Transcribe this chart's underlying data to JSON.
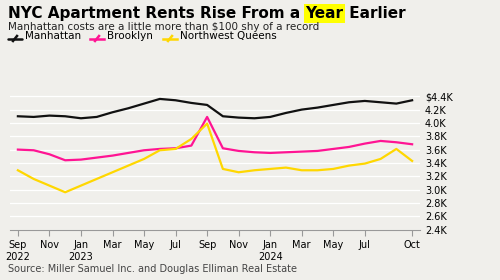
{
  "title_prefix": "NYC Apartment Rents Rise From a ",
  "title_highlight": "Year",
  "title_suffix": " Earlier",
  "subtitle": "Manhattan costs are a little more than $100 shy of a record",
  "source": "Source: Miller Samuel Inc. and Douglas Elliman Real Estate",
  "manhattan": [
    4100,
    4090,
    4110,
    4100,
    4070,
    4090,
    4160,
    4220,
    4290,
    4360,
    4340,
    4300,
    4270,
    4100,
    4080,
    4070,
    4090,
    4150,
    4200,
    4230,
    4270,
    4310,
    4330,
    4310,
    4290,
    4340
  ],
  "brooklyn": [
    3600,
    3590,
    3530,
    3440,
    3450,
    3480,
    3510,
    3550,
    3590,
    3610,
    3620,
    3660,
    4090,
    3620,
    3580,
    3560,
    3550,
    3560,
    3570,
    3580,
    3610,
    3640,
    3690,
    3730,
    3710,
    3680
  ],
  "northwest_queens": [
    3290,
    3160,
    3060,
    2960,
    3060,
    3160,
    3260,
    3360,
    3460,
    3590,
    3610,
    3760,
    3990,
    3310,
    3260,
    3290,
    3310,
    3330,
    3290,
    3290,
    3310,
    3360,
    3390,
    3460,
    3610,
    3430
  ],
  "manhattan_color": "#111111",
  "brooklyn_color": "#FF1493",
  "queens_color": "#FFD700",
  "background_color": "#f0efeb",
  "ylim": [
    2400,
    4500
  ],
  "yticks": [
    2400,
    2600,
    2800,
    3000,
    3200,
    3400,
    3600,
    3800,
    4000,
    4200,
    4400
  ],
  "ytick_labels": [
    "2.4K",
    "2.6K",
    "2.8K",
    "3.0K",
    "3.2K",
    "3.4K",
    "3.6K",
    "3.8K",
    "4.0K",
    "4.2K",
    "$4.4K"
  ],
  "tick_positions": [
    0,
    2,
    4,
    6,
    8,
    10,
    12,
    14,
    16,
    18,
    20,
    22,
    25
  ],
  "tick_labels": [
    "Sep\n2022",
    "Nov",
    "Jan\n2023",
    "Mar",
    "May",
    "Jul",
    "Sep",
    "Nov",
    "Jan\n2024",
    "Mar",
    "May",
    "Jul",
    "Oct"
  ],
  "highlight_color": "#FFFF00",
  "title_fontsize": 11,
  "subtitle_fontsize": 7.5,
  "legend_fontsize": 7.5,
  "axis_fontsize": 7,
  "source_fontsize": 7,
  "line_width": 1.6
}
